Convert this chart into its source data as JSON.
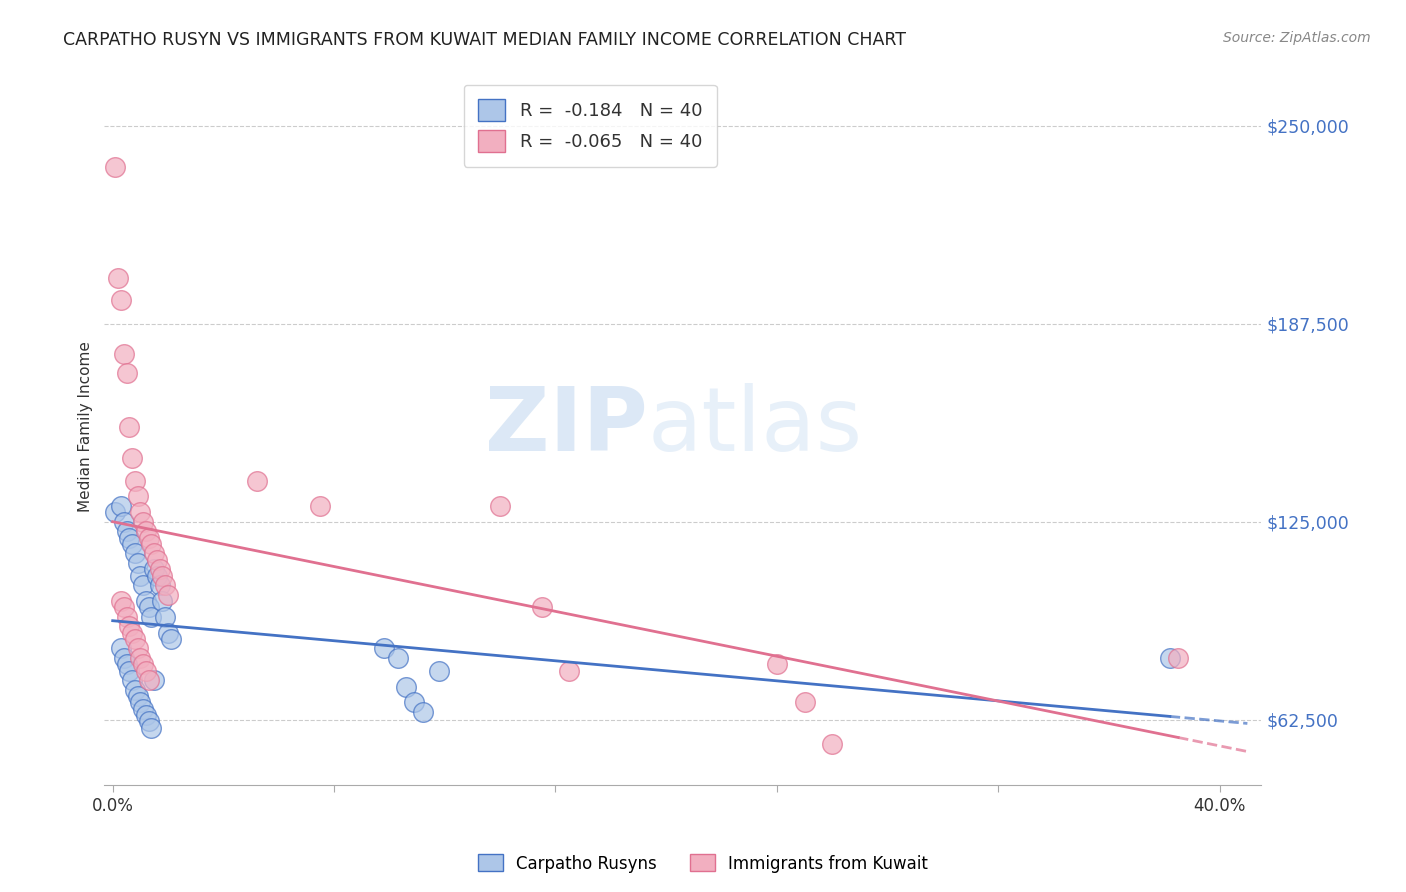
{
  "title": "CARPATHO RUSYN VS IMMIGRANTS FROM KUWAIT MEDIAN FAMILY INCOME CORRELATION CHART",
  "source": "Source: ZipAtlas.com",
  "ylabel": "Median Family Income",
  "ytick_labels": [
    "$62,500",
    "$125,000",
    "$187,500",
    "$250,000"
  ],
  "ytick_values": [
    62500,
    125000,
    187500,
    250000
  ],
  "ymin": 42000,
  "ymax": 268000,
  "xmin": -0.003,
  "xmax": 0.415,
  "legend_blue_r": "-0.184",
  "legend_pink_r": "-0.065",
  "legend_n": "40",
  "watermark_zip": "ZIP",
  "watermark_atlas": "atlas",
  "blue_color": "#adc6e8",
  "pink_color": "#f2afc0",
  "blue_line_color": "#4472c4",
  "pink_line_color": "#e07090",
  "blue_scatter_x": [
    0.001,
    0.003,
    0.004,
    0.005,
    0.006,
    0.007,
    0.008,
    0.009,
    0.01,
    0.011,
    0.012,
    0.013,
    0.014,
    0.015,
    0.016,
    0.017,
    0.018,
    0.019,
    0.02,
    0.021,
    0.003,
    0.004,
    0.005,
    0.006,
    0.007,
    0.008,
    0.009,
    0.01,
    0.011,
    0.012,
    0.013,
    0.014,
    0.015,
    0.098,
    0.103,
    0.106,
    0.109,
    0.112,
    0.118,
    0.382
  ],
  "blue_scatter_y": [
    128000,
    130000,
    125000,
    122000,
    120000,
    118000,
    115000,
    112000,
    108000,
    105000,
    100000,
    98000,
    95000,
    110000,
    108000,
    105000,
    100000,
    95000,
    90000,
    88000,
    85000,
    82000,
    80000,
    78000,
    75000,
    72000,
    70000,
    68000,
    66000,
    64000,
    62000,
    60000,
    75000,
    85000,
    82000,
    73000,
    68000,
    65000,
    78000,
    82000
  ],
  "pink_scatter_x": [
    0.001,
    0.002,
    0.003,
    0.004,
    0.005,
    0.006,
    0.007,
    0.008,
    0.009,
    0.01,
    0.011,
    0.012,
    0.013,
    0.014,
    0.015,
    0.016,
    0.017,
    0.018,
    0.019,
    0.02,
    0.003,
    0.004,
    0.005,
    0.006,
    0.007,
    0.008,
    0.009,
    0.01,
    0.011,
    0.012,
    0.013,
    0.052,
    0.075,
    0.14,
    0.155,
    0.165,
    0.24,
    0.25,
    0.26,
    0.385
  ],
  "pink_scatter_y": [
    237000,
    202000,
    195000,
    178000,
    172000,
    155000,
    145000,
    138000,
    133000,
    128000,
    125000,
    122000,
    120000,
    118000,
    115000,
    113000,
    110000,
    108000,
    105000,
    102000,
    100000,
    98000,
    95000,
    92000,
    90000,
    88000,
    85000,
    82000,
    80000,
    78000,
    75000,
    138000,
    130000,
    130000,
    98000,
    78000,
    80000,
    68000,
    55000,
    82000
  ],
  "grid_color": "#cccccc",
  "background_color": "#ffffff"
}
